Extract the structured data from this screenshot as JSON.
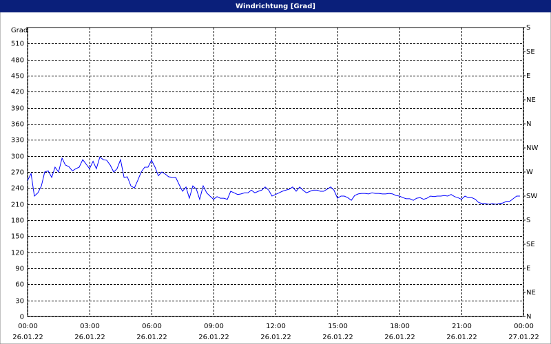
{
  "chart_data": {
    "type": "line",
    "title": "Windrichtung [Grad]",
    "y_label": "Grad",
    "color": "#0000ff",
    "grid": true,
    "xlim": [
      0,
      24
    ],
    "ylim": [
      0,
      540
    ],
    "y2lim": [
      0,
      540
    ],
    "xticks": [
      {
        "value": 0,
        "label": "00:00"
      },
      {
        "value": 3,
        "label": "03:00"
      },
      {
        "value": 6,
        "label": "06:00"
      },
      {
        "value": 9,
        "label": "09:00"
      },
      {
        "value": 12,
        "label": "12:00"
      },
      {
        "value": 15,
        "label": "15:00"
      },
      {
        "value": 18,
        "label": "18:00"
      },
      {
        "value": 21,
        "label": "21:00"
      },
      {
        "value": 24,
        "label": "00:00"
      }
    ],
    "xtick_dates": [
      "26.01.22",
      "26.01.22",
      "26.01.22",
      "26.01.22",
      "26.01.22",
      "26.01.22",
      "26.01.22",
      "26.01.22",
      "27.01.22"
    ],
    "yticks": [
      0,
      30,
      60,
      90,
      120,
      150,
      180,
      210,
      240,
      270,
      300,
      330,
      360,
      390,
      420,
      450,
      480,
      510
    ],
    "y2ticks": [
      {
        "value": 0,
        "label": "N"
      },
      {
        "value": 45,
        "label": "NE"
      },
      {
        "value": 90,
        "label": "E"
      },
      {
        "value": 135,
        "label": "SE"
      },
      {
        "value": 180,
        "label": "S"
      },
      {
        "value": 225,
        "label": "SW"
      },
      {
        "value": 270,
        "label": "W"
      },
      {
        "value": 315,
        "label": "NW"
      },
      {
        "value": 360,
        "label": "N"
      },
      {
        "value": 405,
        "label": "NE"
      },
      {
        "value": 450,
        "label": "E"
      },
      {
        "value": 495,
        "label": "SE"
      },
      {
        "value": 540,
        "label": "S"
      }
    ],
    "x": [
      0,
      0.17,
      0.33,
      0.5,
      0.67,
      0.83,
      1,
      1.17,
      1.33,
      1.5,
      1.67,
      1.83,
      2,
      2.17,
      2.33,
      2.5,
      2.67,
      2.83,
      3,
      3.17,
      3.33,
      3.5,
      3.67,
      3.83,
      4,
      4.17,
      4.33,
      4.5,
      4.67,
      4.83,
      5,
      5.17,
      5.33,
      5.5,
      5.67,
      5.83,
      6,
      6.17,
      6.33,
      6.5,
      6.67,
      6.83,
      7,
      7.17,
      7.33,
      7.5,
      7.67,
      7.83,
      8,
      8.17,
      8.33,
      8.5,
      8.67,
      8.83,
      9,
      9.17,
      9.33,
      9.5,
      9.67,
      9.83,
      10,
      10.17,
      10.33,
      10.5,
      10.67,
      10.83,
      11,
      11.17,
      11.33,
      11.5,
      11.67,
      11.83,
      12,
      12.17,
      12.33,
      12.5,
      12.67,
      12.83,
      13,
      13.17,
      13.33,
      13.5,
      13.67,
      13.83,
      14,
      14.17,
      14.33,
      14.5,
      14.67,
      14.83,
      15,
      15.17,
      15.33,
      15.5,
      15.67,
      15.83,
      16,
      16.17,
      16.33,
      16.5,
      16.67,
      16.83,
      17,
      17.17,
      17.33,
      17.5,
      17.67,
      17.83,
      18,
      18.17,
      18.33,
      18.5,
      18.67,
      18.83,
      19,
      19.17,
      19.33,
      19.5,
      19.67,
      19.83,
      20,
      20.17,
      20.33,
      20.5,
      20.67,
      20.83,
      21,
      21.17,
      21.33,
      21.5,
      21.67,
      21.83,
      22,
      22.17,
      22.33,
      22.5,
      22.67,
      22.83,
      23,
      23.17,
      23.33,
      23.5,
      23.67,
      23.83
    ],
    "values": [
      254,
      267,
      225,
      231,
      244,
      270,
      272,
      260,
      279,
      270,
      296,
      283,
      280,
      272,
      276,
      279,
      293,
      285,
      276,
      290,
      276,
      298,
      293,
      292,
      283,
      270,
      276,
      293,
      260,
      261,
      244,
      240,
      254,
      270,
      279,
      279,
      292,
      279,
      263,
      270,
      266,
      261,
      260,
      260,
      247,
      234,
      242,
      221,
      244,
      238,
      219,
      244,
      231,
      225,
      219,
      224,
      221,
      221,
      219,
      234,
      231,
      228,
      229,
      231,
      231,
      236,
      231,
      234,
      236,
      242,
      236,
      225,
      228,
      231,
      234,
      236,
      238,
      242,
      234,
      242,
      236,
      231,
      234,
      236,
      236,
      234,
      234,
      238,
      242,
      236,
      221,
      225,
      225,
      222,
      217,
      226,
      229,
      230,
      230,
      229,
      231,
      230,
      230,
      229,
      229,
      230,
      229,
      226,
      225,
      222,
      220,
      220,
      217,
      221,
      222,
      219,
      221,
      225,
      224,
      225,
      225,
      226,
      225,
      228,
      224,
      222,
      219,
      225,
      222,
      222,
      219,
      213,
      211,
      211,
      210,
      211,
      210,
      211,
      212,
      215,
      215,
      220,
      225,
      225
    ]
  }
}
